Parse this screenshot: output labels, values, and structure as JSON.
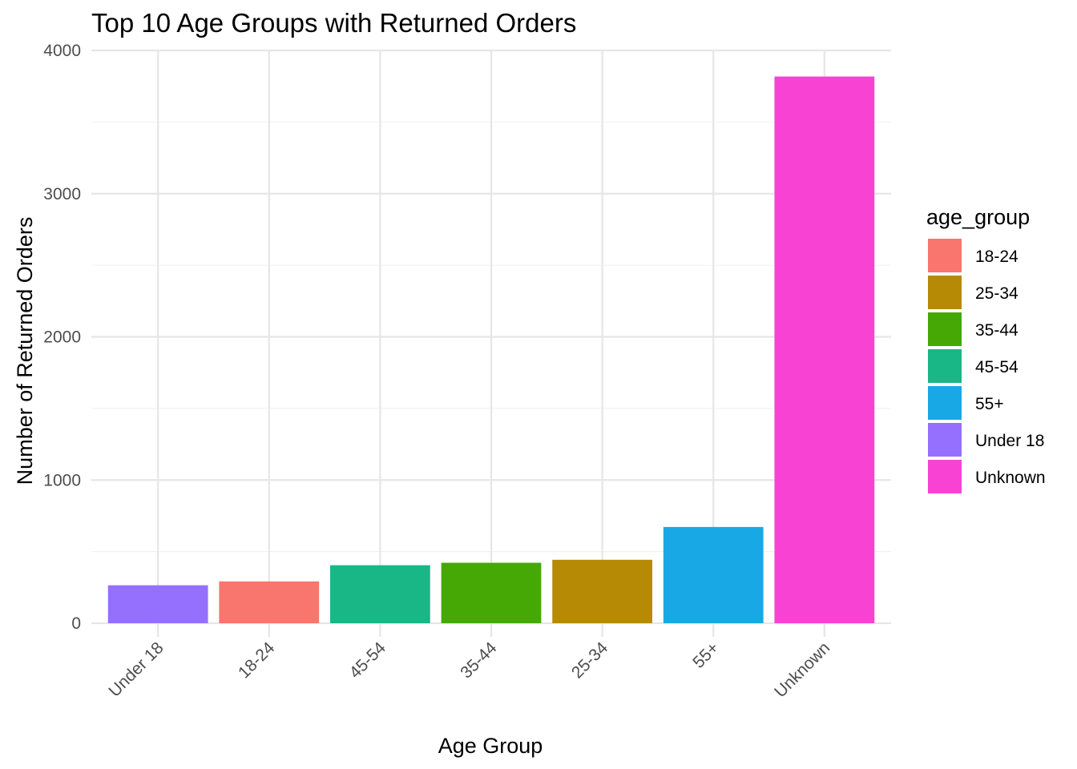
{
  "chart_data": {
    "type": "bar",
    "title": "Top 10 Age Groups with Returned Orders",
    "xlabel": "Age Group",
    "ylabel": "Number of Returned Orders",
    "categories": [
      "Under 18",
      "18-24",
      "45-54",
      "35-44",
      "25-34",
      "55+",
      "Unknown"
    ],
    "values": [
      265,
      292,
      405,
      422,
      443,
      672,
      3818
    ],
    "colors": [
      "#9570FF",
      "#F8766D",
      "#19B786",
      "#45A805",
      "#B68A05",
      "#18A8E5",
      "#F842D3"
    ],
    "ylim": [
      0,
      4000
    ],
    "yticks": [
      0,
      1000,
      2000,
      3000,
      4000
    ],
    "y_tick_labels": [
      "0",
      "1000",
      "2000",
      "3000",
      "4000"
    ],
    "grid": true,
    "legend": {
      "title": "age_group",
      "position": "right",
      "entries": [
        {
          "label": "18-24",
          "color": "#F8766D"
        },
        {
          "label": "25-34",
          "color": "#B68A05"
        },
        {
          "label": "35-44",
          "color": "#45A805"
        },
        {
          "label": "45-54",
          "color": "#19B786"
        },
        {
          "label": "55+",
          "color": "#18A8E5"
        },
        {
          "label": "Under 18",
          "color": "#9570FF"
        },
        {
          "label": "Unknown",
          "color": "#F842D3"
        }
      ]
    }
  }
}
